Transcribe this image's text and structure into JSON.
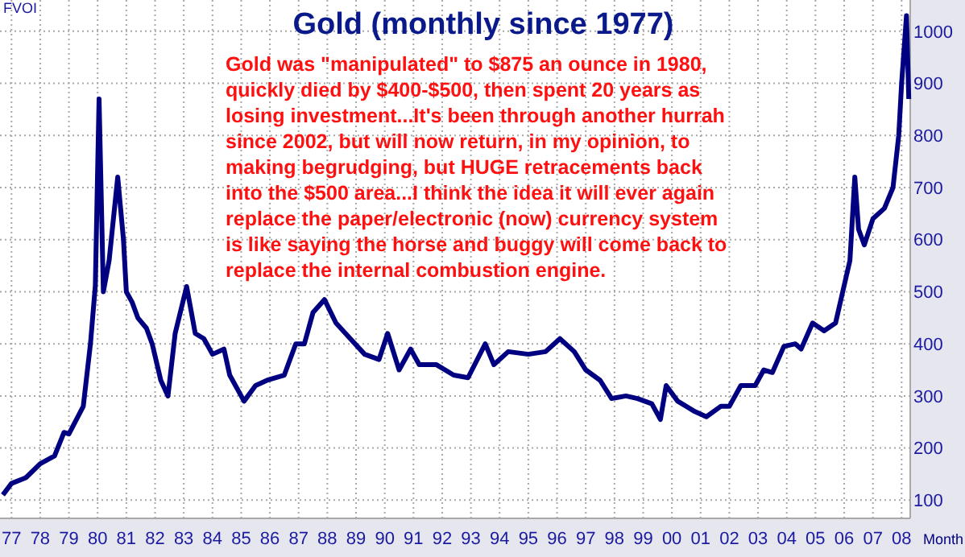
{
  "chart_data": {
    "type": "line",
    "title": "Gold (monthly since 1977)",
    "xlabel": "Month",
    "annotations": [
      "FVOI",
      {
        "text": "Gold was \"manipulated\" to $875 an ounce in 1980,\nquickly died by $400-$500, then spent 20 years as\nlosing investment...It's been through another hurrah\nsince 2002, but will now return, in my opinion, to\nmaking begrudging, but HUGE retracements back\ninto the $500 area...I think the idea it will ever again\nreplace the paper/electronic (now) currency system\nis like saying the horse and buggy will come back to\nreplace the internal combustion engine."
      }
    ],
    "xlim": [
      1976.6,
      2008.3
    ],
    "ylim": [
      65,
      1060
    ],
    "xticks": [
      {
        "value": 1977,
        "label": "77"
      },
      {
        "value": 1978,
        "label": "78"
      },
      {
        "value": 1979,
        "label": "79"
      },
      {
        "value": 1980,
        "label": "80"
      },
      {
        "value": 1981,
        "label": "81"
      },
      {
        "value": 1982,
        "label": "82"
      },
      {
        "value": 1983,
        "label": "83"
      },
      {
        "value": 1984,
        "label": "84"
      },
      {
        "value": 1985,
        "label": "85"
      },
      {
        "value": 1986,
        "label": "86"
      },
      {
        "value": 1987,
        "label": "87"
      },
      {
        "value": 1988,
        "label": "88"
      },
      {
        "value": 1989,
        "label": "89"
      },
      {
        "value": 1990,
        "label": "90"
      },
      {
        "value": 1991,
        "label": "91"
      },
      {
        "value": 1992,
        "label": "92"
      },
      {
        "value": 1993,
        "label": "93"
      },
      {
        "value": 1994,
        "label": "94"
      },
      {
        "value": 1995,
        "label": "95"
      },
      {
        "value": 1996,
        "label": "96"
      },
      {
        "value": 1997,
        "label": "97"
      },
      {
        "value": 1998,
        "label": "98"
      },
      {
        "value": 1999,
        "label": "99"
      },
      {
        "value": 2000,
        "label": "00"
      },
      {
        "value": 2001,
        "label": "01"
      },
      {
        "value": 2002,
        "label": "02"
      },
      {
        "value": 2003,
        "label": "03"
      },
      {
        "value": 2004,
        "label": "04"
      },
      {
        "value": 2005,
        "label": "05"
      },
      {
        "value": 2006,
        "label": "06"
      },
      {
        "value": 2007,
        "label": "07"
      },
      {
        "value": 2008,
        "label": "08"
      }
    ],
    "yticks": [
      100,
      200,
      300,
      400,
      500,
      600,
      700,
      800,
      900,
      1000
    ],
    "grid": true,
    "x": [
      1976.7,
      1977.0,
      1977.5,
      1978.0,
      1978.5,
      1978.83,
      1979.0,
      1979.5,
      1979.75,
      1979.92,
      1980.05,
      1980.2,
      1980.4,
      1980.7,
      1980.9,
      1981.0,
      1981.2,
      1981.4,
      1981.7,
      1981.9,
      1982.2,
      1982.45,
      1982.7,
      1983.1,
      1983.4,
      1983.7,
      1984.0,
      1984.4,
      1984.6,
      1985.1,
      1985.5,
      1985.9,
      1986.5,
      1986.9,
      1987.2,
      1987.5,
      1987.9,
      1988.3,
      1988.8,
      1989.3,
      1989.8,
      1990.1,
      1990.5,
      1990.9,
      1991.2,
      1991.8,
      1992.4,
      1992.9,
      1993.5,
      1993.8,
      1994.3,
      1995.0,
      1995.6,
      1996.1,
      1996.6,
      1997.0,
      1997.5,
      1997.9,
      1998.4,
      1998.8,
      1999.3,
      1999.6,
      1999.8,
      2000.2,
      2000.8,
      2001.2,
      2001.7,
      2002.0,
      2002.4,
      2002.9,
      2003.2,
      2003.5,
      2003.9,
      2004.3,
      2004.5,
      2004.9,
      2005.3,
      2005.7,
      2005.95,
      2006.2,
      2006.37,
      2006.5,
      2006.7,
      2007.0,
      2007.4,
      2007.7,
      2007.9,
      2008.0,
      2008.17,
      2008.25
    ],
    "series": [
      {
        "color": "#000080",
        "values": [
          110,
          132,
          143,
          170,
          185,
          230,
          227,
          280,
          400,
          512,
          870,
          500,
          560,
          720,
          600,
          500,
          480,
          450,
          430,
          400,
          330,
          300,
          420,
          510,
          420,
          410,
          380,
          390,
          340,
          290,
          320,
          330,
          340,
          400,
          400,
          460,
          485,
          440,
          410,
          380,
          370,
          420,
          350,
          390,
          360,
          360,
          340,
          335,
          400,
          360,
          385,
          380,
          385,
          410,
          385,
          350,
          330,
          295,
          300,
          295,
          285,
          255,
          320,
          290,
          270,
          260,
          280,
          280,
          320,
          320,
          350,
          345,
          395,
          400,
          390,
          440,
          425,
          440,
          500,
          560,
          720,
          620,
          590,
          640,
          660,
          700,
          800,
          900,
          1030,
          870
        ]
      }
    ]
  }
}
